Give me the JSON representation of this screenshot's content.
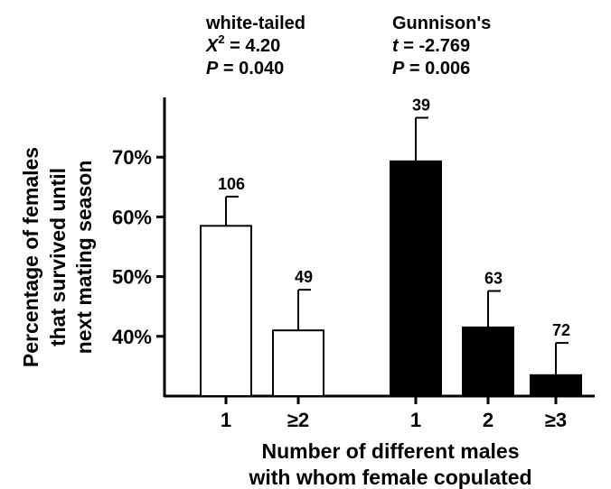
{
  "chart_data": {
    "type": "bar",
    "xlabel": [
      "Number of different males",
      "with whom female copulated"
    ],
    "ylabel": [
      "Percentage of females",
      "that survived until",
      "next mating season"
    ],
    "ylim": [
      30,
      80
    ],
    "yticks": [
      40,
      50,
      60,
      70
    ],
    "ytick_labels": [
      "40%",
      "50%",
      "60%",
      "70%"
    ],
    "groups": [
      {
        "name": "white-tailed",
        "stat_line1": "X",
        "stat_line1_sup": "2",
        "stat_line1_value": " = 4.20",
        "stat_line2": "P = 0.040",
        "color": "#ffffff",
        "categories": [
          "1",
          "≥2"
        ],
        "values": [
          58.5,
          41
        ],
        "errors": [
          4.9,
          6.8
        ],
        "n": [
          "106",
          "49"
        ]
      },
      {
        "name": "Gunnison's",
        "stat_line1": "t = -2.769",
        "stat_line2": "P = 0.006",
        "color": "#000000",
        "categories": [
          "1",
          "2",
          "≥3"
        ],
        "values": [
          69.3,
          41.5,
          33.5
        ],
        "errors": [
          7.3,
          6.1,
          5.4
        ],
        "n": [
          "39",
          "63",
          "72"
        ]
      }
    ]
  }
}
